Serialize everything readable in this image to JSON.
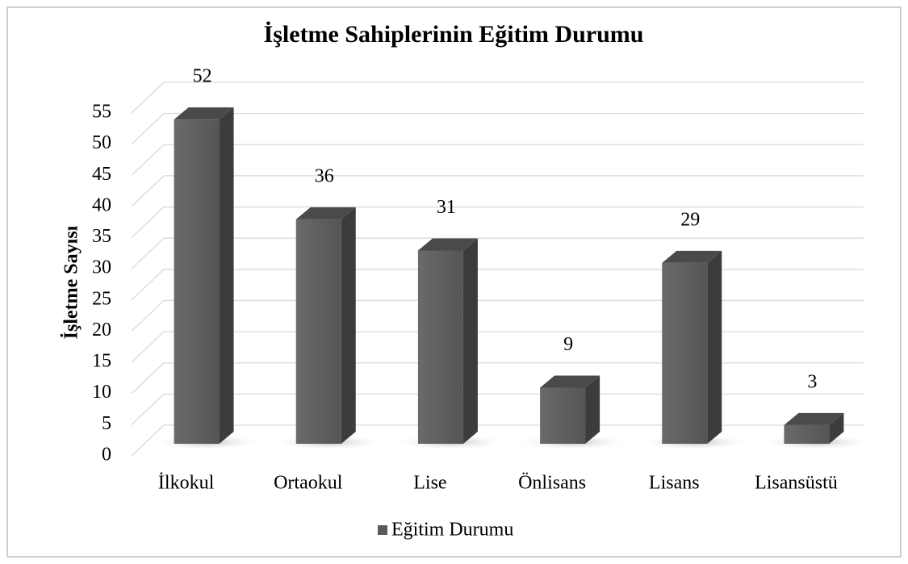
{
  "chart_data": {
    "type": "bar3d",
    "title": "İşletme Sahiplerinin Eğitim Durumu",
    "y_label": "İşletme Sayısı",
    "categories": [
      "İlkokul",
      "Ortaokul",
      "Lise",
      "Önlisans",
      "Lisans",
      "Lisansüstü"
    ],
    "series": [
      {
        "name": "Eğitim Durumu",
        "color": "#595959",
        "values": [
          52,
          36,
          31,
          9,
          29,
          3
        ]
      }
    ],
    "ylim": [
      0,
      55
    ],
    "yticks": [
      0,
      5,
      10,
      15,
      20,
      25,
      30,
      35,
      40,
      45,
      50,
      55
    ],
    "grid": true,
    "legend": "bottom"
  }
}
